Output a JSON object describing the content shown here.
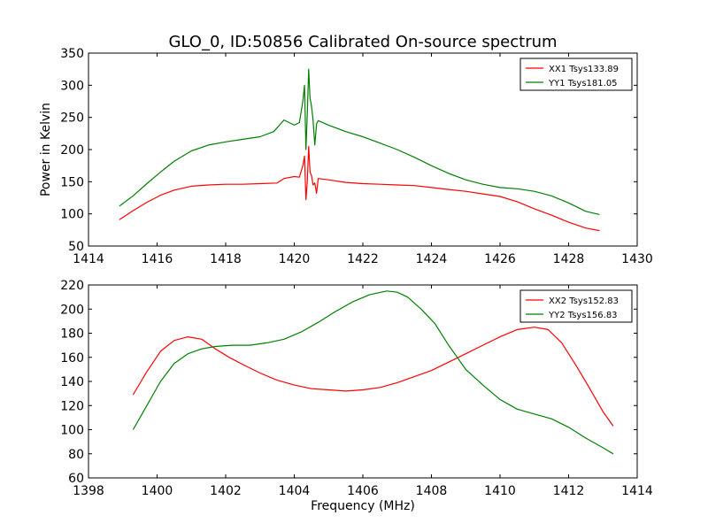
{
  "title": "GLO_0, ID:50856 Calibrated On-source spectrum",
  "colors": {
    "red": "#ff0000",
    "green": "#008000"
  },
  "chart_data": [
    {
      "type": "line",
      "xlabel": "",
      "ylabel": "Power in Kelvin",
      "xlim": [
        1414,
        1430
      ],
      "ylim": [
        50,
        350
      ],
      "xticks": [
        1414,
        1416,
        1418,
        1420,
        1422,
        1424,
        1426,
        1428,
        1430
      ],
      "yticks": [
        50,
        100,
        150,
        200,
        250,
        300,
        350
      ],
      "grid": false,
      "legend_position": "top-right",
      "series": [
        {
          "name": "XX1 Tsys133.89",
          "color": "#ff0000",
          "x": [
            1414.9,
            1415.3,
            1415.7,
            1416.1,
            1416.5,
            1417.0,
            1417.5,
            1418.0,
            1418.5,
            1419.0,
            1419.5,
            1419.7,
            1420.0,
            1420.15,
            1420.25,
            1420.3,
            1420.34,
            1420.38,
            1420.42,
            1420.46,
            1420.5,
            1420.55,
            1420.6,
            1420.65,
            1420.7,
            1421.0,
            1421.5,
            1422.0,
            1422.5,
            1423.0,
            1423.5,
            1424.0,
            1424.5,
            1425.0,
            1425.5,
            1426.0,
            1426.5,
            1427.0,
            1427.5,
            1428.0,
            1428.5,
            1428.9
          ],
          "y": [
            91,
            105,
            118,
            129,
            137,
            143,
            145,
            146,
            146,
            147,
            148,
            155,
            158,
            157,
            175,
            190,
            122,
            150,
            205,
            165,
            160,
            145,
            148,
            132,
            155,
            153,
            149,
            147,
            146,
            145,
            144,
            141,
            138,
            135,
            131,
            127,
            119,
            108,
            98,
            87,
            78,
            74
          ]
        },
        {
          "name": "YY1 Tsys181.05",
          "color": "#008000",
          "x": [
            1414.9,
            1415.3,
            1415.7,
            1416.1,
            1416.5,
            1417.0,
            1417.5,
            1418.0,
            1418.5,
            1419.0,
            1419.4,
            1419.7,
            1420.0,
            1420.15,
            1420.25,
            1420.3,
            1420.34,
            1420.38,
            1420.42,
            1420.46,
            1420.5,
            1420.55,
            1420.6,
            1420.65,
            1420.7,
            1421.0,
            1421.5,
            1422.0,
            1422.5,
            1423.0,
            1423.5,
            1424.0,
            1424.5,
            1425.0,
            1425.5,
            1426.0,
            1426.5,
            1427.0,
            1427.5,
            1428.0,
            1428.5,
            1428.9
          ],
          "y": [
            112,
            128,
            147,
            165,
            182,
            198,
            207,
            212,
            216,
            220,
            228,
            246,
            238,
            242,
            275,
            300,
            200,
            255,
            325,
            280,
            268,
            245,
            207,
            240,
            245,
            238,
            228,
            220,
            210,
            200,
            188,
            175,
            163,
            153,
            146,
            141,
            139,
            135,
            128,
            117,
            104,
            99
          ]
        }
      ]
    },
    {
      "type": "line",
      "xlabel": "Frequency (MHz)",
      "ylabel": "",
      "xlim": [
        1398,
        1414
      ],
      "ylim": [
        60,
        220
      ],
      "xticks": [
        1398,
        1400,
        1402,
        1404,
        1406,
        1408,
        1410,
        1412,
        1414
      ],
      "yticks": [
        60,
        80,
        100,
        120,
        140,
        160,
        180,
        200,
        220
      ],
      "grid": false,
      "legend_position": "top-right",
      "series": [
        {
          "name": "XX2 Tsys152.83",
          "color": "#ff0000",
          "x": [
            1399.3,
            1399.7,
            1400.1,
            1400.5,
            1400.9,
            1401.3,
            1401.7,
            1402.1,
            1402.5,
            1403.0,
            1403.5,
            1404.0,
            1404.5,
            1405.0,
            1405.5,
            1406.0,
            1406.5,
            1407.0,
            1407.5,
            1408.0,
            1408.5,
            1409.0,
            1409.5,
            1410.0,
            1410.5,
            1411.0,
            1411.4,
            1411.8,
            1412.2,
            1412.6,
            1413.0,
            1413.3
          ],
          "y": [
            129,
            148,
            165,
            174,
            177,
            175,
            167,
            160,
            154,
            147,
            141,
            137,
            134,
            133,
            132,
            133,
            135,
            139,
            144,
            149,
            156,
            163,
            170,
            177,
            183,
            185,
            183,
            172,
            154,
            135,
            115,
            103
          ]
        },
        {
          "name": "YY2 Tsys156.83",
          "color": "#008000",
          "x": [
            1399.3,
            1399.7,
            1400.1,
            1400.5,
            1400.9,
            1401.3,
            1401.7,
            1402.2,
            1402.7,
            1403.2,
            1403.7,
            1404.2,
            1404.7,
            1405.2,
            1405.7,
            1406.2,
            1406.7,
            1407.0,
            1407.3,
            1407.7,
            1408.1,
            1408.5,
            1409.0,
            1409.5,
            1410.0,
            1410.5,
            1411.0,
            1411.5,
            1412.0,
            1412.5,
            1413.0,
            1413.3
          ],
          "y": [
            100,
            120,
            140,
            155,
            163,
            167,
            169,
            170,
            170,
            172,
            175,
            181,
            189,
            198,
            206,
            212,
            215,
            214,
            210,
            200,
            188,
            170,
            150,
            137,
            125,
            117,
            113,
            109,
            102,
            93,
            85,
            80
          ]
        }
      ]
    }
  ]
}
